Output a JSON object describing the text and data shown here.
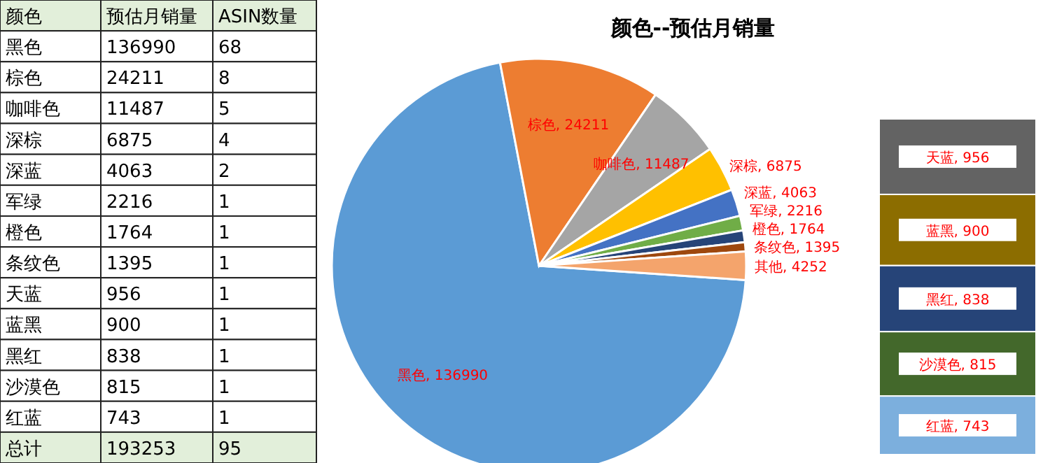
{
  "chart_data": [
    {
      "type": "other",
      "xlabel": "颜色",
      "data_labels": true,
      "categories": [
        "黑色",
        "棕色",
        "咖啡色",
        "深棕",
        "深蓝",
        "军绿",
        "橙色",
        "条纹色",
        "天蓝",
        "蓝黑",
        "黑红",
        "沙漠色",
        "红蓝",
        "总计"
      ],
      "series": [
        {
          "name": "预估月销量",
          "colors": [
            "#ffffff",
            "#ffffff",
            "#ffffff",
            "#ffffff",
            "#ffffff",
            "#ffffff",
            "#ffffff",
            "#ffffff",
            "#ffffff",
            "#ffffff",
            "#ffffff",
            "#ffffff",
            "#ffffff",
            "#e2efda"
          ],
          "values": [
            136990,
            24211,
            11487,
            6875,
            4063,
            2216,
            1764,
            1395,
            956,
            900,
            838,
            815,
            743,
            193253
          ]
        },
        {
          "name": "ASIN数量",
          "colors": [
            "#ffffff",
            "#ffffff",
            "#ffffff",
            "#ffffff",
            "#ffffff",
            "#ffffff",
            "#ffffff",
            "#ffffff",
            "#ffffff",
            "#ffffff",
            "#ffffff",
            "#ffffff",
            "#ffffff",
            "#e2efda"
          ],
          "values": [
            68,
            8,
            5,
            4,
            2,
            1,
            1,
            1,
            1,
            1,
            1,
            1,
            1,
            95
          ]
        }
      ]
    },
    {
      "type": "pie",
      "title": "颜色--预估月销量",
      "categories": [
        "黑色",
        "棕色",
        "咖啡色",
        "深棕",
        "深蓝",
        "军绿",
        "橙色",
        "条纹色",
        "其他"
      ],
      "values": [
        136990,
        24211,
        11487,
        6875,
        4063,
        2216,
        1764,
        1395,
        4252
      ],
      "value_labels": [
        ", 136990",
        ", 24211",
        ", 11487",
        ", 6875",
        ", 4063",
        ", 2216",
        ", 1764",
        ", 1395",
        ", 4252"
      ],
      "colors": [
        "#5b9bd5",
        "#ed7d31",
        "#a5a5a5",
        "#ffc000",
        "#4472c4",
        "#70ad47",
        "#264478",
        "#9e480e",
        "#f4a46c"
      ]
    },
    {
      "type": "bar",
      "stacked": true,
      "categories": [
        null
      ],
      "series": [
        {
          "name": "红蓝",
          "color": "#7cafdd",
          "values": [
            743
          ],
          "value_labels": [
            ", 743"
          ]
        },
        {
          "name": "沙漠色",
          "color": "#43682b",
          "values": [
            815
          ],
          "value_labels": [
            ", 815"
          ]
        },
        {
          "name": "黑红",
          "color": "#264478",
          "values": [
            838
          ],
          "value_labels": [
            ", 838"
          ]
        },
        {
          "name": "蓝黑",
          "color": "#8c6d00",
          "values": [
            900
          ],
          "value_labels": [
            ", 900"
          ]
        },
        {
          "name": "天蓝",
          "color": "#636363",
          "values": [
            956
          ],
          "value_labels": [
            ", 956"
          ]
        }
      ]
    }
  ]
}
